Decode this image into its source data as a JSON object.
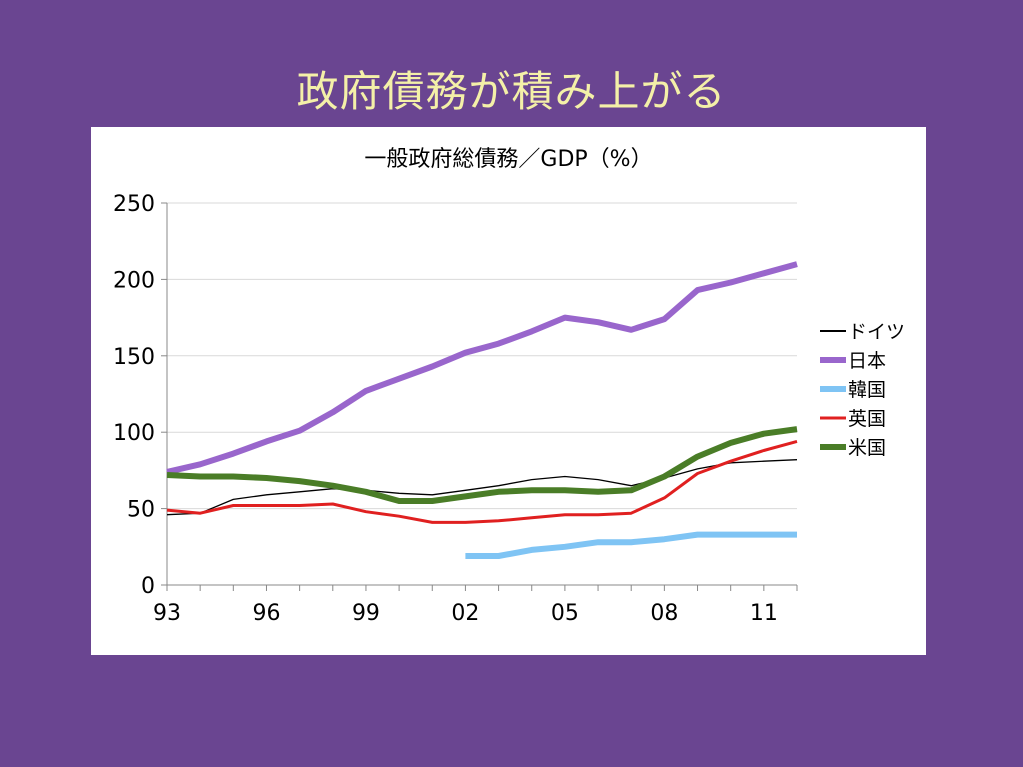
{
  "slide": {
    "title": "政府債務が積み上がる"
  },
  "chart_data": {
    "type": "line",
    "title": "一般政府総債務／GDP（%）",
    "xlabel": "",
    "ylabel": "",
    "x": [
      "93",
      "94",
      "95",
      "96",
      "97",
      "98",
      "99",
      "00",
      "01",
      "02",
      "03",
      "04",
      "05",
      "06",
      "07",
      "08",
      "09",
      "10",
      "11",
      "12"
    ],
    "x_tick_labels": [
      "93",
      "96",
      "99",
      "02",
      "05",
      "08",
      "11"
    ],
    "ylim": [
      0,
      250
    ],
    "y_ticks": [
      "0",
      "50",
      "100",
      "150",
      "200",
      "250"
    ],
    "grid": true,
    "legend_position": "right",
    "series": [
      {
        "name": "ドイツ",
        "color": "#000000",
        "width": 1.3,
        "values": [
          46,
          47,
          56,
          59,
          61,
          63,
          62,
          60,
          59,
          62,
          65,
          69,
          71,
          69,
          65,
          70,
          76,
          80,
          81,
          82
        ]
      },
      {
        "name": "日本",
        "color": "#9966cc",
        "width": 6,
        "values": [
          74,
          79,
          86,
          94,
          101,
          113,
          127,
          135,
          143,
          152,
          158,
          166,
          175,
          172,
          167,
          174,
          193,
          198,
          204,
          210
        ]
      },
      {
        "name": "韓国",
        "color": "#7fc4f4",
        "width": 6,
        "values": [
          null,
          null,
          null,
          null,
          null,
          null,
          null,
          null,
          null,
          19,
          19,
          23,
          25,
          28,
          28,
          30,
          33,
          33,
          33,
          33
        ]
      },
      {
        "name": "英国",
        "color": "#e02020",
        "width": 3,
        "values": [
          49,
          47,
          52,
          52,
          52,
          53,
          48,
          45,
          41,
          41,
          42,
          44,
          46,
          46,
          47,
          57,
          73,
          81,
          88,
          94
        ]
      },
      {
        "name": "米国",
        "color": "#4a7d27",
        "width": 6,
        "values": [
          72,
          71,
          71,
          70,
          68,
          65,
          61,
          55,
          55,
          58,
          61,
          62,
          62,
          61,
          62,
          71,
          84,
          93,
          99,
          102
        ]
      }
    ]
  }
}
